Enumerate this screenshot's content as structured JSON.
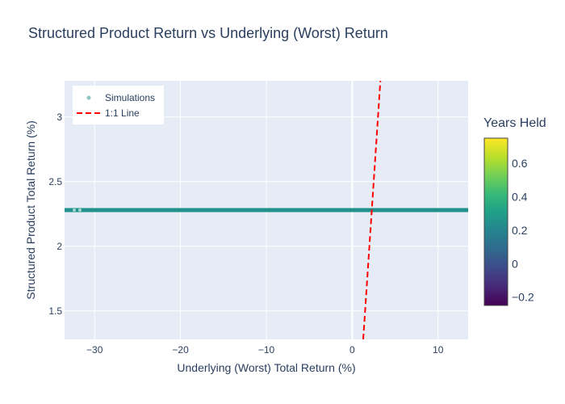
{
  "chart_data": {
    "type": "scatter",
    "title": "Structured Product Return vs Underlying (Worst) Return",
    "xlabel": "Underlying (Worst) Total Return (%)",
    "ylabel": "Structured Product Total Return (%)",
    "xlim": [
      -33.5,
      13.5
    ],
    "ylim": [
      1.28,
      3.28
    ],
    "x_ticks": [
      -30,
      -20,
      -10,
      0,
      10
    ],
    "x_tick_labels": [
      "−30",
      "−20",
      "−10",
      "0",
      "10"
    ],
    "y_ticks": [
      1.5,
      2,
      2.5,
      3
    ],
    "y_tick_labels": [
      "1.5",
      "2",
      "2.5",
      "3"
    ],
    "grid": true,
    "legend_position": "top-left",
    "series": [
      {
        "name": "Simulations",
        "kind": "markers",
        "color": "#21918c",
        "x_range": [
          -33.5,
          13.5
        ],
        "y": 2.28,
        "colorscale_value": 0.25
      },
      {
        "name": "1:1 Line",
        "kind": "dashed-line",
        "color": "#ff0000",
        "x": [
          1.28,
          3.28
        ],
        "y": [
          1.28,
          3.28
        ]
      }
    ],
    "colorbar": {
      "title": "Years Held",
      "colorscale": "Viridis",
      "range": [
        -0.25,
        0.75
      ],
      "ticks": [
        -0.2,
        0,
        0.2,
        0.4,
        0.6
      ],
      "tick_labels": [
        "−0.2",
        "0",
        "0.2",
        "0.4",
        "0.6"
      ]
    },
    "colors": {
      "plot_bg": "#e5ecf6",
      "grid": "#ffffff",
      "text": "#2a3f5f"
    }
  }
}
